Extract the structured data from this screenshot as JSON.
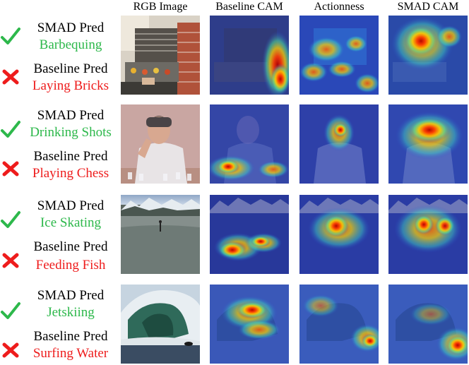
{
  "columns": [
    "RGB Image",
    "Baseline CAM",
    "Actionness",
    "SMAD CAM"
  ],
  "labels": {
    "smad": "SMAD Pred",
    "baseline": "Baseline Pred"
  },
  "rows": [
    {
      "smad_pred": "Barbequing",
      "baseline_pred": "Laying Bricks",
      "scene": "barbecue"
    },
    {
      "smad_pred": "Drinking Shots",
      "baseline_pred": "Playing Chess",
      "scene": "person"
    },
    {
      "smad_pred": "Ice Skating",
      "baseline_pred": "Feeding Fish",
      "scene": "lake"
    },
    {
      "smad_pred": "Jetskiing",
      "baseline_pred": "Surfing Water",
      "scene": "wave"
    }
  ],
  "colors": {
    "correct": "#2db84b",
    "wrong": "#ee1c1c"
  },
  "icons": {
    "correct": "check-icon",
    "wrong": "cross-icon"
  }
}
